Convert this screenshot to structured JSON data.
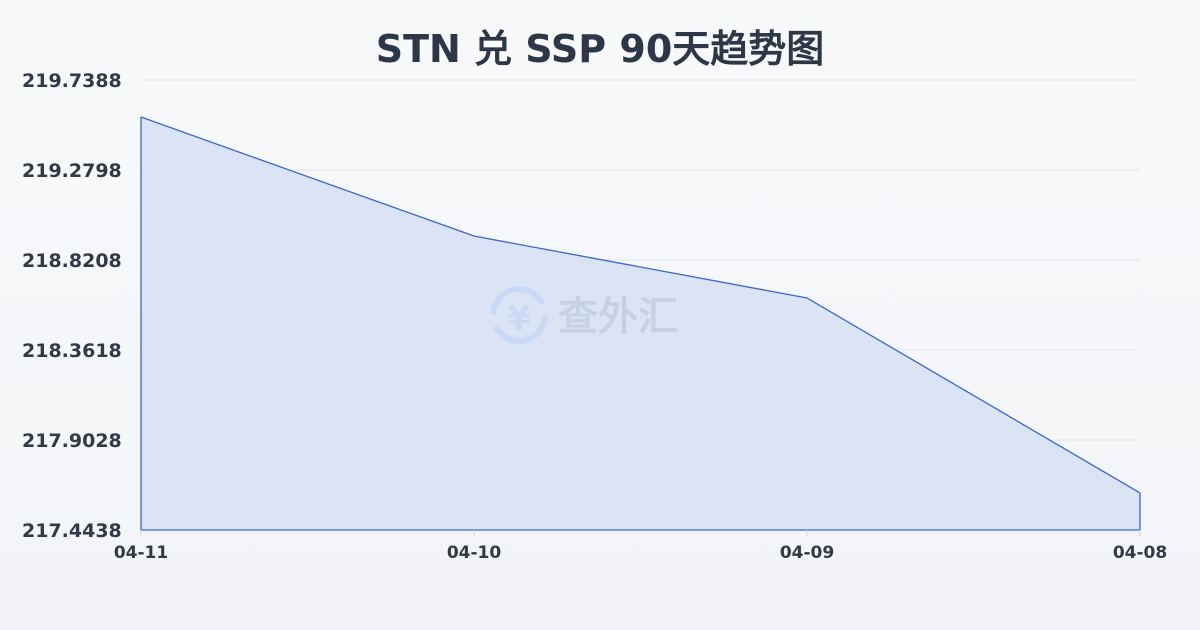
{
  "chart_data": {
    "type": "area",
    "title": "STN 兑 SSP 90天趋势图",
    "xlabel": "",
    "ylabel": "",
    "categories": [
      "04-11",
      "04-10",
      "04-09",
      "04-08"
    ],
    "values": [
      219.55,
      218.943,
      218.627,
      217.633
    ],
    "ylim": [
      217.4438,
      219.7388
    ],
    "yticks": [
      "219.7388",
      "219.2798",
      "218.8208",
      "218.3618",
      "217.9028",
      "217.4438"
    ],
    "grid": true,
    "colors": {
      "line": "#3a66c9",
      "fill": "#d6e1f5",
      "grid": "#e3e6ea"
    }
  },
  "watermark": {
    "text": "查外汇",
    "icon": "yen-exchange-icon"
  }
}
